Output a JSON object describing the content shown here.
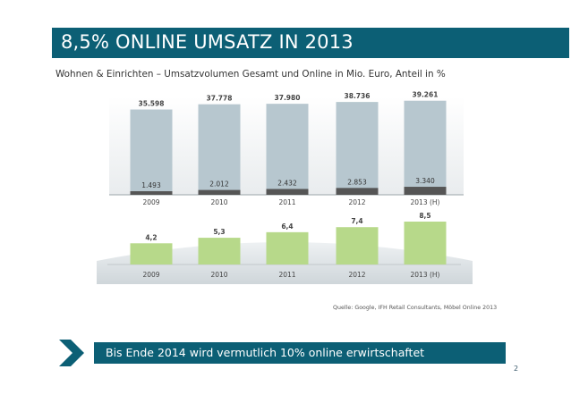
{
  "title": "8,5% ONLINE UMSATZ IN 2013",
  "subtitle": "Wohnen & Einrichten – Umsatzvolumen Gesamt und Online in Mio. Euro, Anteil in %",
  "source": "Quelle: Google, IFH Retail Consultants, Möbel Online 2013",
  "callout": "Bis Ende 2014 wird vermutlich 10% online erwirtschaftet",
  "page_number": "2",
  "colors": {
    "accent": "#0c5f75",
    "total_bar": "#b7c7cf",
    "online_bar": "#555555",
    "share_bar": "#b7d98a"
  },
  "chart_data": [
    {
      "type": "bar",
      "categories": [
        "2009",
        "2010",
        "2011",
        "2012",
        "2013 (H)"
      ],
      "series": [
        {
          "name": "",
          "values": [
            35598,
            37778,
            37980,
            38736,
            39261
          ],
          "labels": [
            "35.598",
            "37.778",
            "37.980",
            "38.736",
            "39.261"
          ]
        },
        {
          "name": "",
          "values": [
            1493,
            2012,
            2432,
            2853,
            3340
          ],
          "labels": [
            "1.493",
            "2.012",
            "2.432",
            "2.853",
            "3.340"
          ]
        }
      ]
    },
    {
      "type": "bar",
      "categories": [
        "2009",
        "2010",
        "2011",
        "2012",
        "2013 (H)"
      ],
      "values": [
        4.2,
        5.3,
        6.4,
        7.4,
        8.5
      ],
      "labels": [
        "4,2",
        "5,3",
        "6,4",
        "7,4",
        "8,5"
      ]
    }
  ]
}
